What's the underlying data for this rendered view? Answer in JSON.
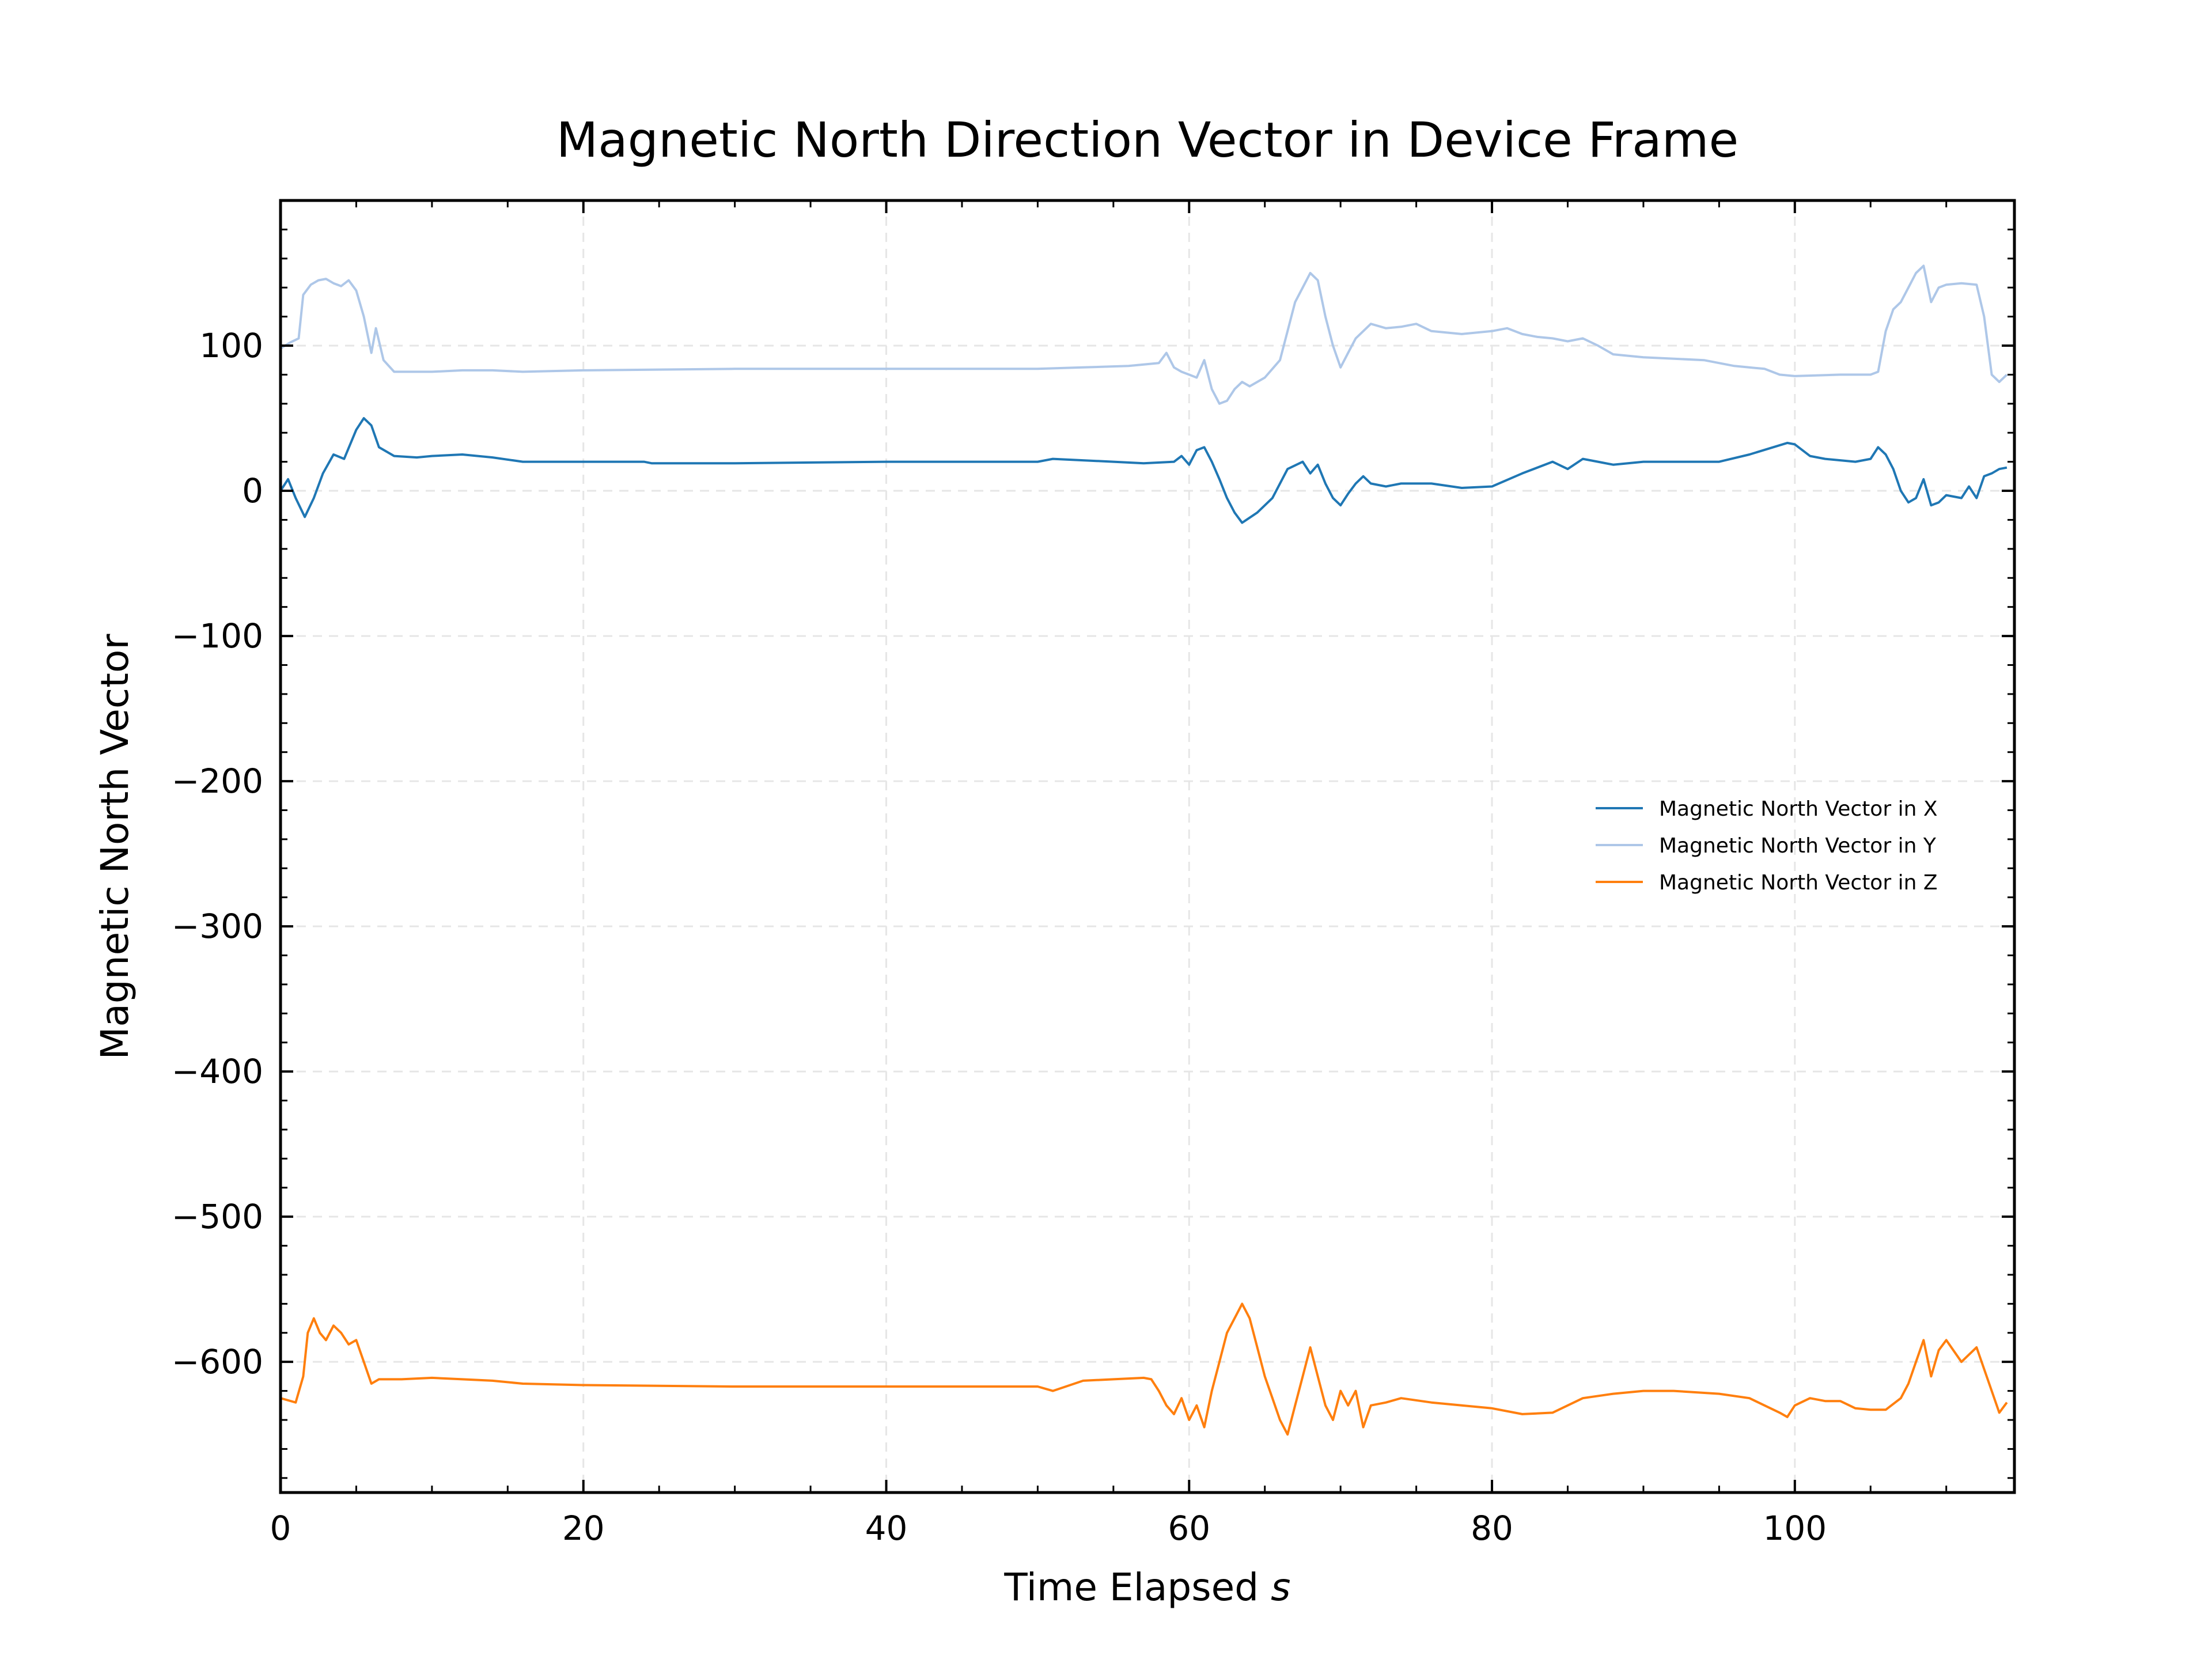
{
  "chart_data": {
    "type": "line",
    "title": "Magnetic North Direction Vector in Device Frame",
    "xlabel_main": "Time Elapsed ",
    "xlabel_unit": "s",
    "ylabel": "Magnetic North Vector",
    "xlim": [
      0,
      114.5
    ],
    "ylim": [
      -690,
      200
    ],
    "x_ticks": [
      0,
      20,
      40,
      60,
      80,
      100
    ],
    "x_tick_labels": [
      "0",
      "20",
      "40",
      "60",
      "80",
      "100"
    ],
    "y_ticks": [
      100,
      0,
      -100,
      -200,
      -300,
      -400,
      -500,
      -600
    ],
    "y_tick_labels": [
      "100",
      "0",
      "−100",
      "−200",
      "−300",
      "−400",
      "−500",
      "−600"
    ],
    "grid": true,
    "legend_position": "right",
    "series": [
      {
        "name": "Magnetic North Vector in X",
        "color": "#1f77b4",
        "points": [
          [
            0,
            0
          ],
          [
            0.5,
            8
          ],
          [
            1,
            -5
          ],
          [
            1.6,
            -18
          ],
          [
            2.2,
            -5
          ],
          [
            2.8,
            12
          ],
          [
            3.5,
            25
          ],
          [
            4.2,
            22
          ],
          [
            5,
            42
          ],
          [
            5.5,
            50
          ],
          [
            6,
            45
          ],
          [
            6.5,
            30
          ],
          [
            7.5,
            24
          ],
          [
            9,
            23
          ],
          [
            10,
            24
          ],
          [
            12,
            25
          ],
          [
            14,
            23
          ],
          [
            16,
            20
          ],
          [
            20,
            20
          ],
          [
            24,
            20
          ],
          [
            24.5,
            19
          ],
          [
            30,
            19
          ],
          [
            40,
            20
          ],
          [
            50,
            20
          ],
          [
            51,
            22
          ],
          [
            55,
            20
          ],
          [
            57,
            19
          ],
          [
            59,
            20
          ],
          [
            59.5,
            24
          ],
          [
            60,
            18
          ],
          [
            60.5,
            28
          ],
          [
            61,
            30
          ],
          [
            61.5,
            20
          ],
          [
            62,
            8
          ],
          [
            62.5,
            -5
          ],
          [
            63,
            -15
          ],
          [
            63.5,
            -22
          ],
          [
            64.5,
            -15
          ],
          [
            65.5,
            -5
          ],
          [
            66.5,
            15
          ],
          [
            67.5,
            20
          ],
          [
            68,
            12
          ],
          [
            68.5,
            18
          ],
          [
            69,
            5
          ],
          [
            69.5,
            -5
          ],
          [
            70,
            -10
          ],
          [
            70.5,
            -2
          ],
          [
            71,
            5
          ],
          [
            71.5,
            10
          ],
          [
            72,
            5
          ],
          [
            73,
            3
          ],
          [
            74,
            5
          ],
          [
            76,
            5
          ],
          [
            78,
            2
          ],
          [
            80,
            3
          ],
          [
            82,
            12
          ],
          [
            84,
            20
          ],
          [
            85,
            15
          ],
          [
            86,
            22
          ],
          [
            87,
            20
          ],
          [
            88,
            18
          ],
          [
            90,
            20
          ],
          [
            95,
            20
          ],
          [
            97,
            25
          ],
          [
            99.5,
            33
          ],
          [
            100,
            32
          ],
          [
            101,
            24
          ],
          [
            102,
            22
          ],
          [
            103,
            21
          ],
          [
            104,
            20
          ],
          [
            105,
            22
          ],
          [
            105.5,
            30
          ],
          [
            106,
            25
          ],
          [
            106.5,
            15
          ],
          [
            107,
            0
          ],
          [
            107.5,
            -8
          ],
          [
            108,
            -5
          ],
          [
            108.5,
            8
          ],
          [
            109,
            -10
          ],
          [
            109.5,
            -8
          ],
          [
            110,
            -3
          ],
          [
            111,
            -5
          ],
          [
            111.5,
            3
          ],
          [
            112,
            -5
          ],
          [
            112.5,
            10
          ],
          [
            113,
            12
          ],
          [
            113.5,
            15
          ],
          [
            114,
            16
          ]
        ]
      },
      {
        "name": "Magnetic North Vector in Y",
        "color": "#aec7e8",
        "points": [
          [
            0,
            98
          ],
          [
            0.6,
            102
          ],
          [
            1.2,
            105
          ],
          [
            1.5,
            135
          ],
          [
            2,
            142
          ],
          [
            2.5,
            145
          ],
          [
            3,
            146
          ],
          [
            3.5,
            143
          ],
          [
            4,
            141
          ],
          [
            4.5,
            145
          ],
          [
            5,
            138
          ],
          [
            5.5,
            120
          ],
          [
            6,
            95
          ],
          [
            6.3,
            112
          ],
          [
            6.8,
            90
          ],
          [
            7.5,
            82
          ],
          [
            10,
            82
          ],
          [
            12,
            83
          ],
          [
            14,
            83
          ],
          [
            16,
            82
          ],
          [
            20,
            83
          ],
          [
            30,
            84
          ],
          [
            40,
            84
          ],
          [
            50,
            84
          ],
          [
            53,
            85
          ],
          [
            56,
            86
          ],
          [
            58,
            88
          ],
          [
            58.5,
            95
          ],
          [
            59,
            85
          ],
          [
            59.5,
            82
          ],
          [
            60,
            80
          ],
          [
            60.5,
            78
          ],
          [
            61,
            90
          ],
          [
            61.5,
            70
          ],
          [
            62,
            60
          ],
          [
            62.5,
            62
          ],
          [
            63,
            70
          ],
          [
            63.5,
            75
          ],
          [
            64,
            72
          ],
          [
            65,
            78
          ],
          [
            66,
            90
          ],
          [
            66.5,
            110
          ],
          [
            67,
            130
          ],
          [
            67.5,
            140
          ],
          [
            68,
            150
          ],
          [
            68.5,
            145
          ],
          [
            69,
            120
          ],
          [
            69.5,
            100
          ],
          [
            70,
            85
          ],
          [
            70.5,
            95
          ],
          [
            71,
            105
          ],
          [
            72,
            115
          ],
          [
            73,
            112
          ],
          [
            74,
            113
          ],
          [
            75,
            115
          ],
          [
            76,
            110
          ],
          [
            78,
            108
          ],
          [
            80,
            110
          ],
          [
            81,
            112
          ],
          [
            82,
            108
          ],
          [
            83,
            106
          ],
          [
            84,
            105
          ],
          [
            85,
            103
          ],
          [
            86,
            105
          ],
          [
            87,
            100
          ],
          [
            88,
            94
          ],
          [
            90,
            92
          ],
          [
            94,
            90
          ],
          [
            96,
            86
          ],
          [
            98,
            84
          ],
          [
            99,
            80
          ],
          [
            100,
            79
          ],
          [
            103,
            80
          ],
          [
            104,
            80
          ],
          [
            105,
            80
          ],
          [
            105.5,
            82
          ],
          [
            106,
            110
          ],
          [
            106.5,
            125
          ],
          [
            107,
            130
          ],
          [
            107.5,
            140
          ],
          [
            108,
            150
          ],
          [
            108.5,
            155
          ],
          [
            109,
            130
          ],
          [
            109.5,
            140
          ],
          [
            110,
            142
          ],
          [
            111,
            143
          ],
          [
            112,
            142
          ],
          [
            112.5,
            120
          ],
          [
            113,
            80
          ],
          [
            113.5,
            75
          ],
          [
            114,
            80
          ]
        ]
      },
      {
        "name": "Magnetic North Vector in Z",
        "color": "#ff7f0e",
        "points": [
          [
            0,
            -625
          ],
          [
            1,
            -628
          ],
          [
            1.5,
            -610
          ],
          [
            1.8,
            -580
          ],
          [
            2.2,
            -570
          ],
          [
            2.6,
            -580
          ],
          [
            3,
            -585
          ],
          [
            3.5,
            -575
          ],
          [
            4,
            -580
          ],
          [
            4.5,
            -588
          ],
          [
            5,
            -585
          ],
          [
            5.5,
            -600
          ],
          [
            6,
            -615
          ],
          [
            6.5,
            -612
          ],
          [
            8,
            -612
          ],
          [
            10,
            -611
          ],
          [
            12,
            -612
          ],
          [
            14,
            -613
          ],
          [
            16,
            -615
          ],
          [
            20,
            -616
          ],
          [
            30,
            -617
          ],
          [
            40,
            -617
          ],
          [
            50,
            -617
          ],
          [
            51,
            -620
          ],
          [
            53,
            -613
          ],
          [
            55,
            -612
          ],
          [
            57,
            -611
          ],
          [
            57.5,
            -612
          ],
          [
            58,
            -620
          ],
          [
            58.5,
            -630
          ],
          [
            59,
            -636
          ],
          [
            59.5,
            -625
          ],
          [
            60,
            -640
          ],
          [
            60.5,
            -630
          ],
          [
            61,
            -645
          ],
          [
            61.5,
            -620
          ],
          [
            62,
            -600
          ],
          [
            62.5,
            -580
          ],
          [
            63,
            -570
          ],
          [
            63.5,
            -560
          ],
          [
            64,
            -570
          ],
          [
            64.5,
            -590
          ],
          [
            65,
            -610
          ],
          [
            65.5,
            -625
          ],
          [
            66,
            -640
          ],
          [
            66.5,
            -650
          ],
          [
            67,
            -630
          ],
          [
            67.5,
            -610
          ],
          [
            68,
            -590
          ],
          [
            68.5,
            -610
          ],
          [
            69,
            -630
          ],
          [
            69.5,
            -640
          ],
          [
            70,
            -620
          ],
          [
            70.5,
            -630
          ],
          [
            71,
            -620
          ],
          [
            71.5,
            -645
          ],
          [
            72,
            -630
          ],
          [
            73,
            -628
          ],
          [
            74,
            -625
          ],
          [
            76,
            -628
          ],
          [
            78,
            -630
          ],
          [
            80,
            -632
          ],
          [
            82,
            -636
          ],
          [
            84,
            -635
          ],
          [
            85,
            -630
          ],
          [
            86,
            -625
          ],
          [
            88,
            -622
          ],
          [
            90,
            -620
          ],
          [
            92,
            -620
          ],
          [
            95,
            -622
          ],
          [
            97,
            -625
          ],
          [
            98,
            -630
          ],
          [
            99,
            -635
          ],
          [
            99.5,
            -638
          ],
          [
            100,
            -630
          ],
          [
            101,
            -625
          ],
          [
            102,
            -627
          ],
          [
            103,
            -627
          ],
          [
            104,
            -632
          ],
          [
            105,
            -633
          ],
          [
            106,
            -633
          ],
          [
            107,
            -625
          ],
          [
            107.5,
            -615
          ],
          [
            108,
            -600
          ],
          [
            108.5,
            -585
          ],
          [
            109,
            -610
          ],
          [
            109.5,
            -592
          ],
          [
            110,
            -585
          ],
          [
            111,
            -600
          ],
          [
            112,
            -590
          ],
          [
            113,
            -620
          ],
          [
            113.5,
            -635
          ],
          [
            114,
            -628
          ]
        ]
      }
    ]
  }
}
